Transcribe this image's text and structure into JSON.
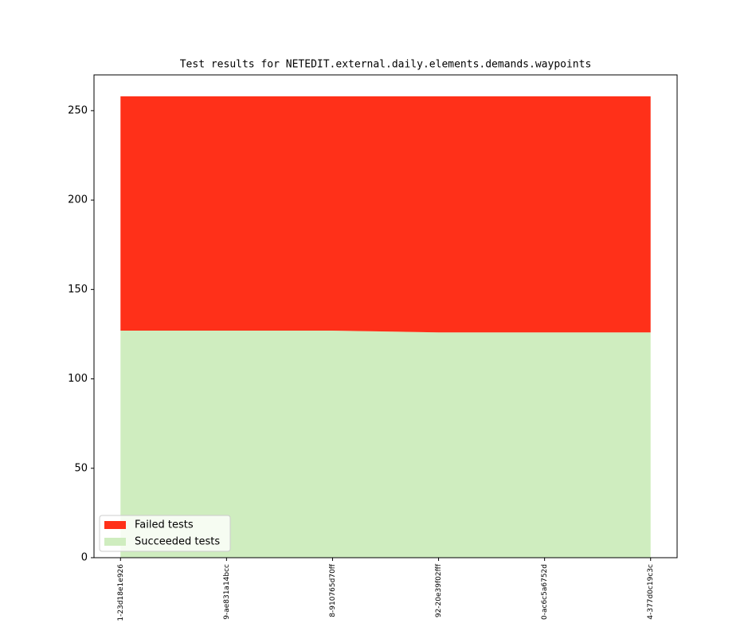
{
  "chart_data": {
    "type": "stacked-area",
    "title": "Test results for NETEDIT.external.daily.elements.demands.waypoints",
    "categories": [
      "1-23d18e1e926",
      "9-ae831a14bcc",
      "8-910765d70ff",
      "92-20e39f02fff",
      "0-ac6c5a6752d",
      "4-377d0c19c3c"
    ],
    "series": [
      {
        "name": "Succeeded tests",
        "color": "#cfedbf",
        "values": [
          127,
          127,
          127,
          126,
          126,
          126
        ]
      },
      {
        "name": "Failed tests",
        "color": "#ff3019",
        "values": [
          131,
          131,
          131,
          132,
          132,
          132
        ]
      }
    ],
    "ylim": [
      0,
      270
    ],
    "yticks": [
      0,
      50,
      100,
      150,
      200,
      250
    ],
    "legend": "lower left"
  }
}
